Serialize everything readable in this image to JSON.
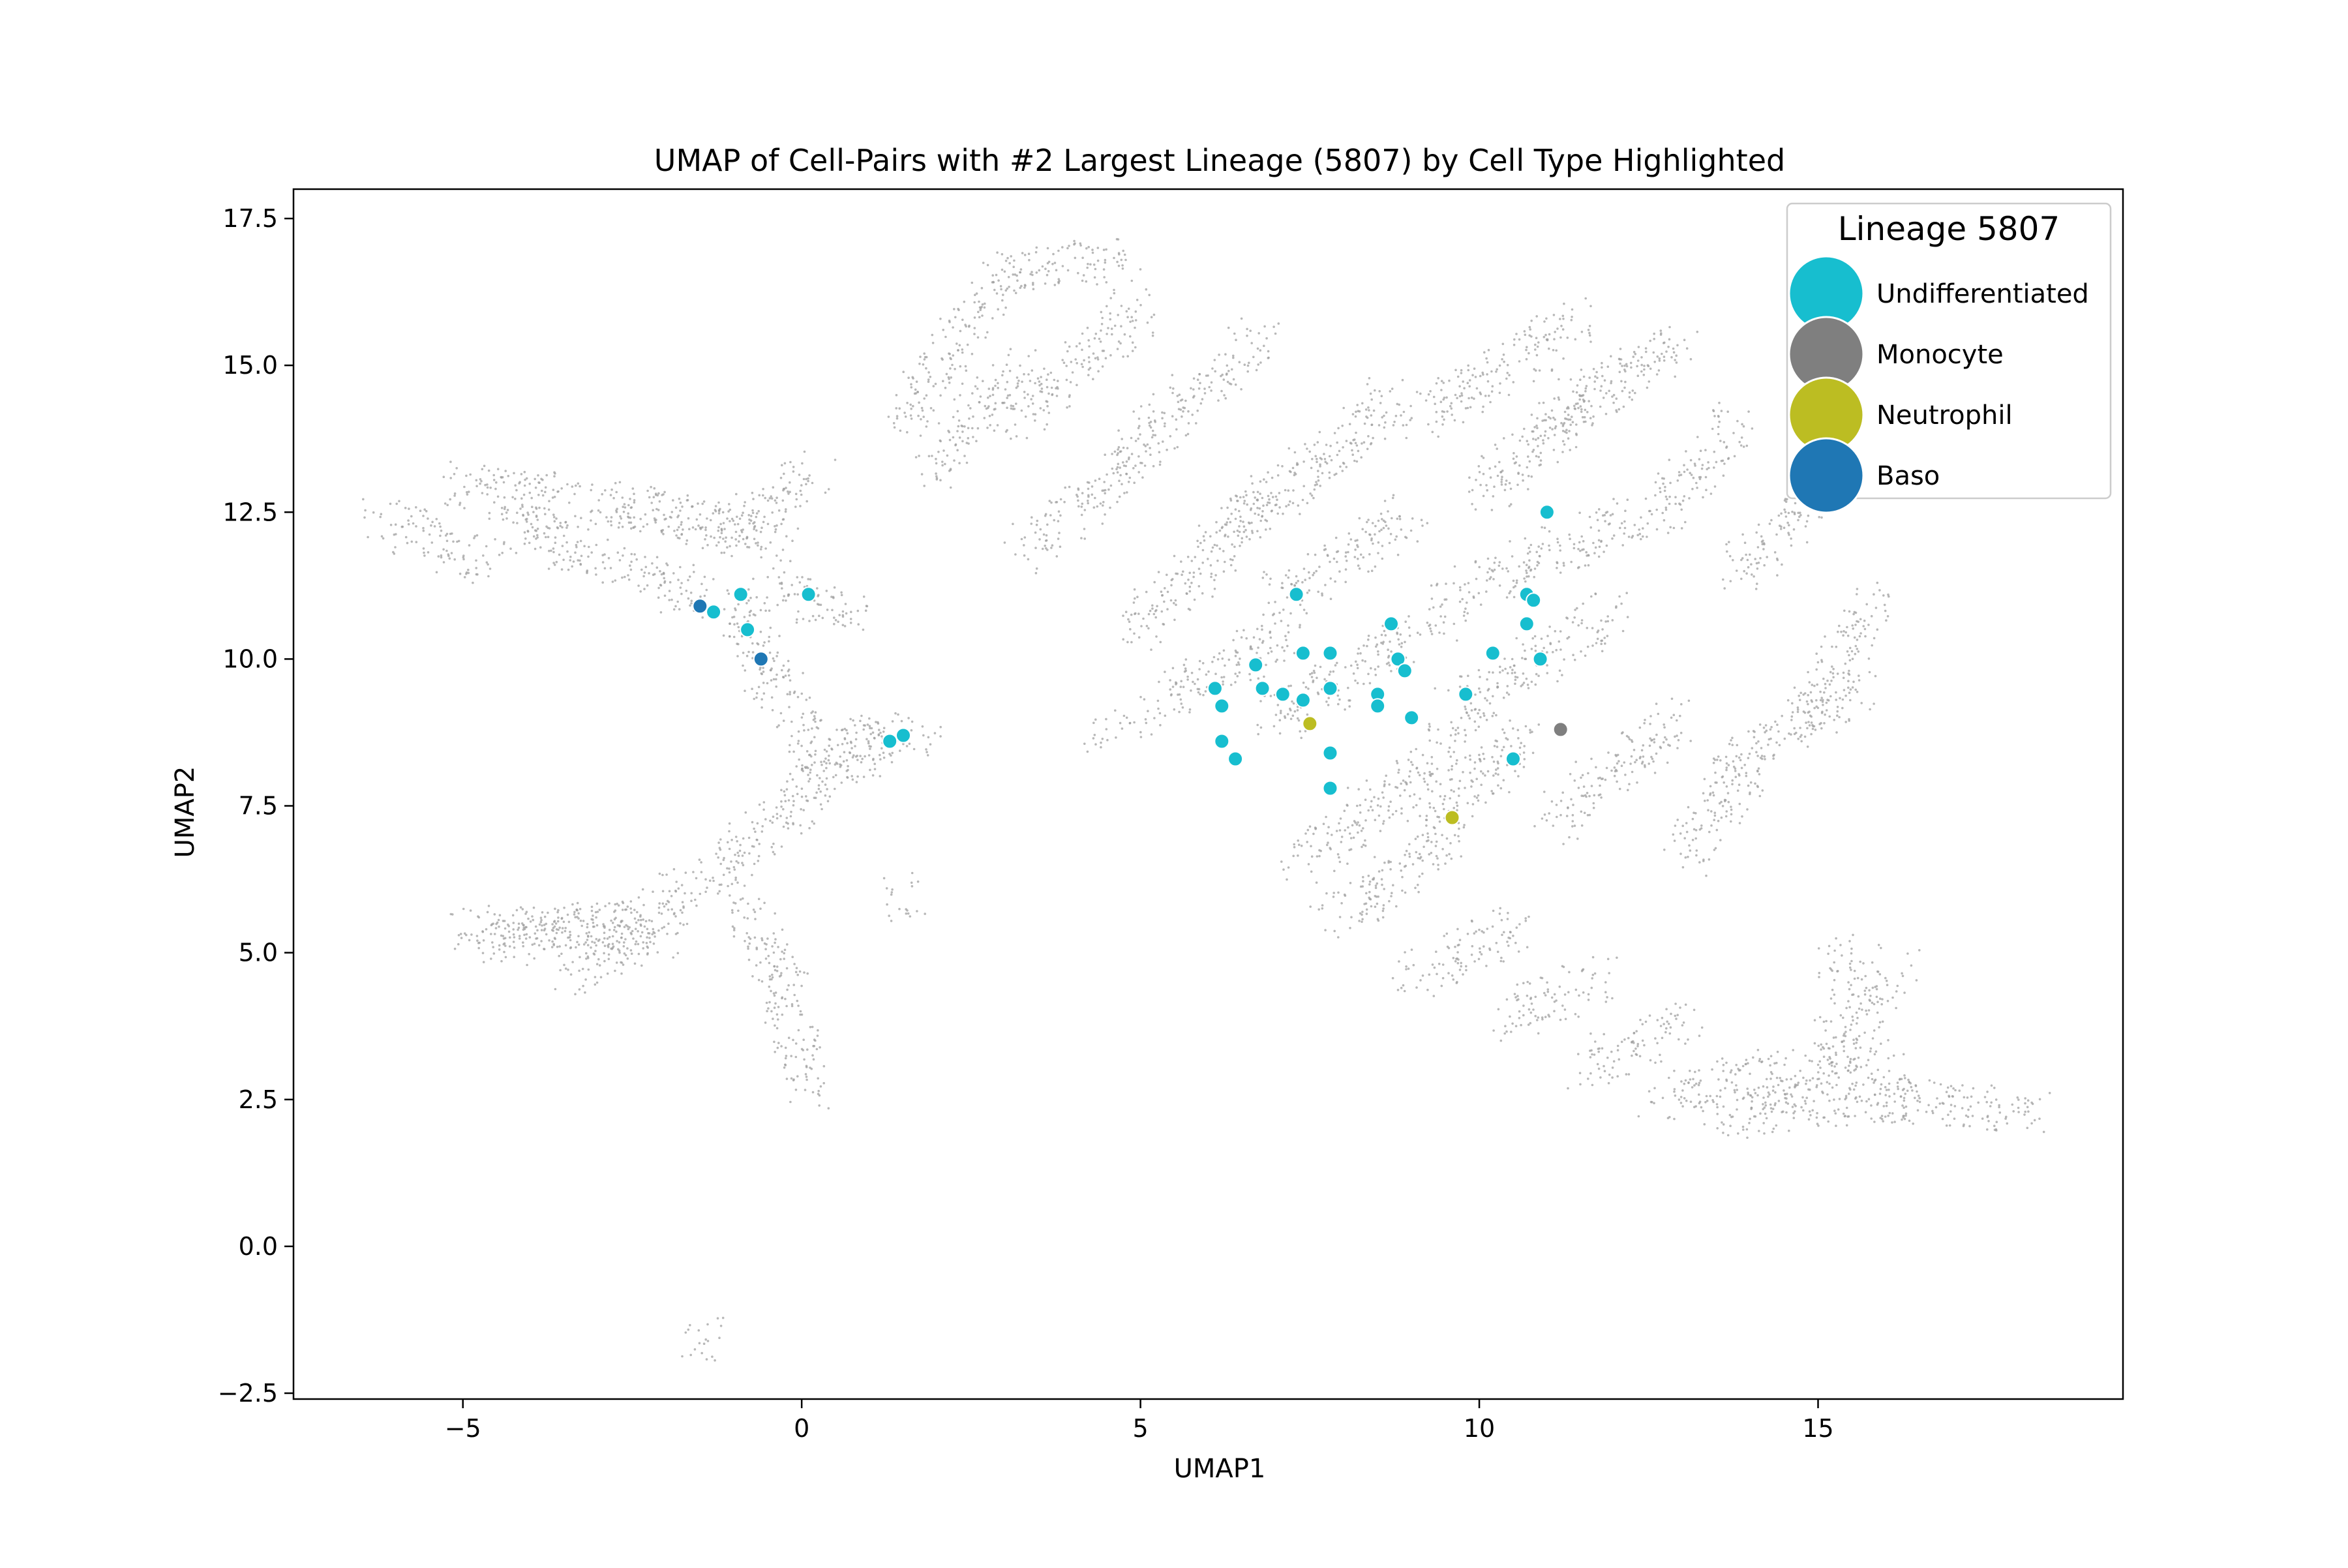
{
  "chart_data": {
    "type": "scatter",
    "title": "UMAP of Cell-Pairs with #2 Largest Lineage (5807) by Cell Type Highlighted",
    "xlabel": "UMAP1",
    "ylabel": "UMAP2",
    "xlim": [
      -7.5,
      19.5
    ],
    "ylim": [
      -2.6,
      18.0
    ],
    "x_ticks": [
      -5,
      0,
      5,
      10,
      15
    ],
    "x_tick_labels": [
      "−5",
      "0",
      "5",
      "10",
      "15"
    ],
    "y_ticks": [
      -2.5,
      0.0,
      2.5,
      5.0,
      7.5,
      10.0,
      12.5,
      15.0,
      17.5
    ],
    "y_tick_labels": [
      "−2.5",
      "0.0",
      "2.5",
      "5.0",
      "7.5",
      "10.0",
      "12.5",
      "15.0",
      "17.5"
    ],
    "grid": false,
    "legend": {
      "title": "Lineage 5807",
      "placement": "top-right",
      "entries": [
        {
          "label": "Undifferentiated",
          "color": "#17becf"
        },
        {
          "label": "Monocyte",
          "color": "#7f7f7f"
        },
        {
          "label": "Neutrophil",
          "color": "#bcbd22"
        },
        {
          "label": "Baso",
          "color": "#1f77b4"
        }
      ]
    },
    "background": {
      "color": "#a0a0a0",
      "segments": [
        [
          -6.2,
          12.4,
          -4.6,
          11.6
        ],
        [
          -5.2,
          13.0,
          -2.0,
          12.5
        ],
        [
          -4.5,
          12.4,
          -1.4,
          11.0
        ],
        [
          -2.5,
          12.6,
          -0.2,
          12.0
        ],
        [
          -1.2,
          12.0,
          0.2,
          13.2
        ],
        [
          -0.6,
          11.2,
          0.8,
          10.8
        ],
        [
          -1.0,
          11.0,
          -0.5,
          9.6
        ],
        [
          -0.5,
          9.8,
          0.5,
          8.2
        ],
        [
          0.5,
          8.6,
          1.8,
          8.7
        ],
        [
          0.0,
          7.8,
          1.2,
          8.6
        ],
        [
          -0.6,
          7.0,
          0.2,
          7.9
        ],
        [
          -1.5,
          6.2,
          -0.6,
          7.0
        ],
        [
          -2.4,
          5.5,
          -1.5,
          6.2
        ],
        [
          -5.0,
          5.4,
          -2.4,
          5.5
        ],
        [
          -4.8,
          5.1,
          -2.4,
          5.5
        ],
        [
          -3.5,
          4.6,
          -2.0,
          5.4
        ],
        [
          -1.0,
          5.9,
          -0.2,
          4.5
        ],
        [
          -0.4,
          4.5,
          0.1,
          2.6
        ],
        [
          1.5,
          14.0,
          3.0,
          16.6
        ],
        [
          3.0,
          16.6,
          4.8,
          16.8
        ],
        [
          1.8,
          13.2,
          3.4,
          15.0
        ],
        [
          3.2,
          14.0,
          5.0,
          16.0
        ],
        [
          4.8,
          13.5,
          6.8,
          15.5
        ],
        [
          3.3,
          11.8,
          5.0,
          13.5
        ],
        [
          5.0,
          10.5,
          7.0,
          13.0
        ],
        [
          5.0,
          9.0,
          7.2,
          10.5
        ],
        [
          6.2,
          12.0,
          8.8,
          14.5
        ],
        [
          7.0,
          11.0,
          9.0,
          12.5
        ],
        [
          7.0,
          9.0,
          9.5,
          10.8
        ],
        [
          7.3,
          6.5,
          10.0,
          8.8
        ],
        [
          9.0,
          14.0,
          11.5,
          15.8
        ],
        [
          10.0,
          12.8,
          12.0,
          14.8
        ],
        [
          11.0,
          14.0,
          13.0,
          15.5
        ],
        [
          12.5,
          12.2,
          13.8,
          14.0
        ],
        [
          13.8,
          11.5,
          15.0,
          12.8
        ],
        [
          14.8,
          9.0,
          15.9,
          11.0
        ],
        [
          13.5,
          8.0,
          15.6,
          9.5
        ],
        [
          9.5,
          11.0,
          12.2,
          12.4
        ],
        [
          9.5,
          9.0,
          12.0,
          10.8
        ],
        [
          9.2,
          7.0,
          10.8,
          8.8
        ],
        [
          11.0,
          7.2,
          13.0,
          9.0
        ],
        [
          13.0,
          6.5,
          14.0,
          8.2
        ],
        [
          7.8,
          5.5,
          9.5,
          6.8
        ],
        [
          9.0,
          4.6,
          10.6,
          5.5
        ],
        [
          10.4,
          3.8,
          11.8,
          4.6
        ],
        [
          11.5,
          3.0,
          13.0,
          3.8
        ],
        [
          12.5,
          2.5,
          14.5,
          3.0
        ],
        [
          13.5,
          2.2,
          16.5,
          2.6
        ],
        [
          14.5,
          2.6,
          16.0,
          3.5
        ],
        [
          15.2,
          3.4,
          16.2,
          4.8
        ],
        [
          16.0,
          2.5,
          18.2,
          2.3
        ],
        [
          15.2,
          5.0,
          15.6,
          4.2
        ],
        [
          -1.5,
          -1.5,
          -1.4,
          -1.7
        ],
        [
          1.5,
          5.9,
          1.6,
          6.1
        ],
        [
          4.3,
          8.7,
          4.6,
          8.8
        ]
      ]
    },
    "series": [
      {
        "name": "Undifferentiated",
        "color": "#17becf",
        "points": [
          [
            -1.3,
            10.8
          ],
          [
            -0.9,
            11.1
          ],
          [
            -0.8,
            10.5
          ],
          [
            0.1,
            11.1
          ],
          [
            1.3,
            8.6
          ],
          [
            1.5,
            8.7
          ],
          [
            6.1,
            9.5
          ],
          [
            6.2,
            9.2
          ],
          [
            6.2,
            8.6
          ],
          [
            6.4,
            8.3
          ],
          [
            6.7,
            9.9
          ],
          [
            6.8,
            9.5
          ],
          [
            7.1,
            9.4
          ],
          [
            7.3,
            11.1
          ],
          [
            7.4,
            10.1
          ],
          [
            7.4,
            9.3
          ],
          [
            7.8,
            10.1
          ],
          [
            7.8,
            9.5
          ],
          [
            7.8,
            8.4
          ],
          [
            7.8,
            7.8
          ],
          [
            8.5,
            9.4
          ],
          [
            8.5,
            9.2
          ],
          [
            8.7,
            10.6
          ],
          [
            8.8,
            10.0
          ],
          [
            8.9,
            9.8
          ],
          [
            9.0,
            9.0
          ],
          [
            9.8,
            9.4
          ],
          [
            10.2,
            10.1
          ],
          [
            10.5,
            8.3
          ],
          [
            10.7,
            11.1
          ],
          [
            10.7,
            10.6
          ],
          [
            10.8,
            11.0
          ],
          [
            10.9,
            10.0
          ],
          [
            11.0,
            12.5
          ]
        ]
      },
      {
        "name": "Monocyte",
        "color": "#7f7f7f",
        "points": [
          [
            11.2,
            8.8
          ]
        ]
      },
      {
        "name": "Neutrophil",
        "color": "#bcbd22",
        "points": [
          [
            7.5,
            8.9
          ],
          [
            9.6,
            7.3
          ]
        ]
      },
      {
        "name": "Baso",
        "color": "#1f77b4",
        "points": [
          [
            -1.5,
            10.9
          ],
          [
            -0.6,
            10.0
          ]
        ]
      }
    ]
  }
}
